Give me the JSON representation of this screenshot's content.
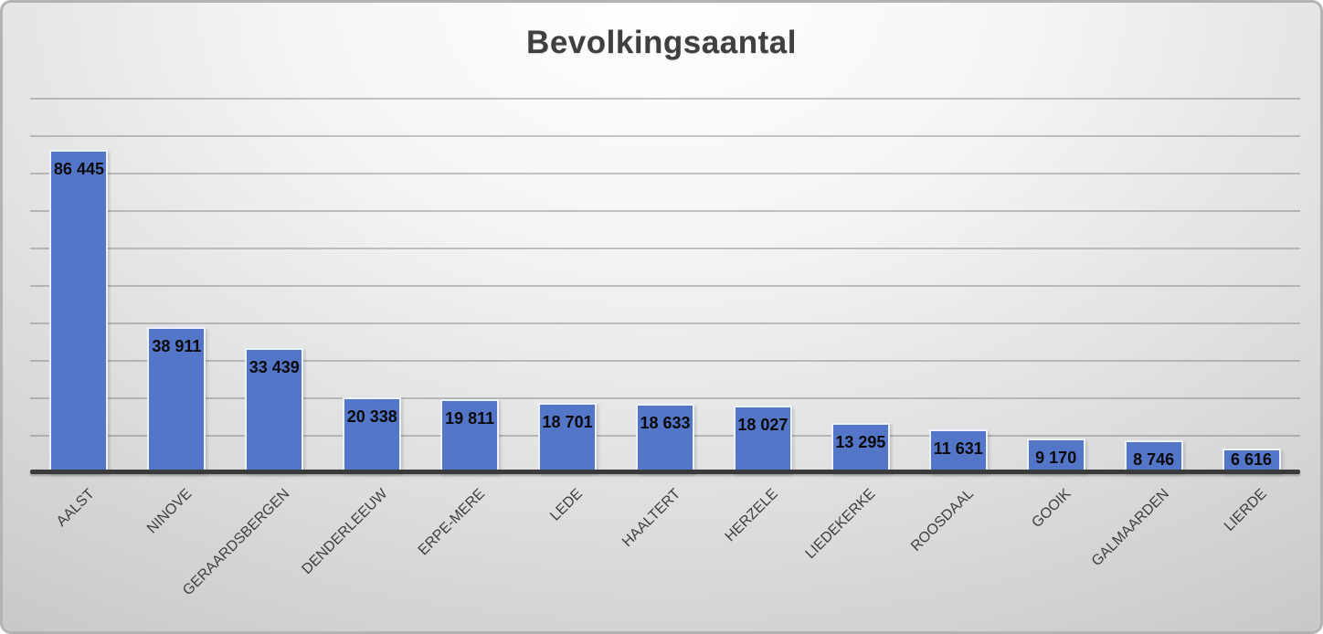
{
  "chart_data": {
    "type": "bar",
    "title": "Bevolkingsaantal",
    "categories": [
      "AALST",
      "NINOVE",
      "GERAARDSBERGEN",
      "DENDERLEEUW",
      "ERPE-MERE",
      "LEDE",
      "HAALTERT",
      "HERZELE",
      "LIEDEKERKE",
      "ROOSDAAL",
      "GOOIK",
      "GALMAARDEN",
      "LIERDE"
    ],
    "values": [
      86445,
      38911,
      33439,
      20338,
      19811,
      18701,
      18633,
      18027,
      13295,
      11631,
      9170,
      8746,
      6616
    ],
    "data_labels": [
      "86 445",
      "38 911",
      "33 439",
      "20 338",
      "19 811",
      "18 701",
      "18 633",
      "18 027",
      "13 295",
      "11 631",
      "9 170",
      "8 746",
      "6 616"
    ],
    "xlabel": "",
    "ylabel": "",
    "ylim": [
      0,
      100000
    ],
    "gridline_interval": 10000,
    "grid": true,
    "legend": "none",
    "label_position": "inside-end",
    "colors": {
      "bar_fill": "#5376C8",
      "bar_border": "#EDF1FA",
      "gridline": "#8c8c8c",
      "axis_line": "#3a3a3a",
      "title_text": "#3f3f3f",
      "data_label_text": "#0a0a0a",
      "category_label_text": "#3f3f3f"
    }
  }
}
